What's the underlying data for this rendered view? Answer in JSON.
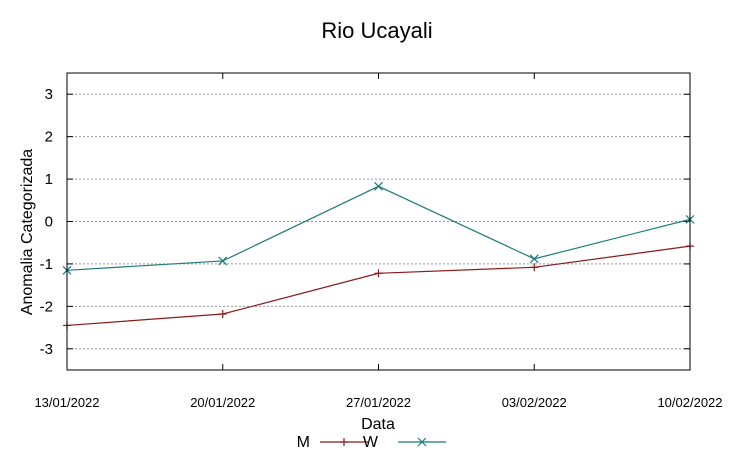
{
  "chart_data": {
    "type": "line",
    "title": "Rio Ucayali",
    "xlabel": "Data",
    "ylabel": "Anomalia Categorizada",
    "categories": [
      "13/01/2022",
      "20/01/2022",
      "27/01/2022",
      "03/02/2022",
      "10/02/2022"
    ],
    "ylim": [
      -3.5,
      3.5
    ],
    "yticks": [
      3,
      2,
      1,
      0,
      -1,
      -2,
      -3
    ],
    "grid": true,
    "legend_position": "bottom-center",
    "series": [
      {
        "name": "M",
        "marker": "plus",
        "color": "#8b1a1a",
        "values": [
          -2.45,
          -2.18,
          -1.22,
          -1.08,
          -0.58
        ]
      },
      {
        "name": "W",
        "marker": "x",
        "color": "#1a7a7d",
        "values": [
          -1.15,
          -0.93,
          0.83,
          -0.88,
          0.05
        ]
      }
    ]
  }
}
